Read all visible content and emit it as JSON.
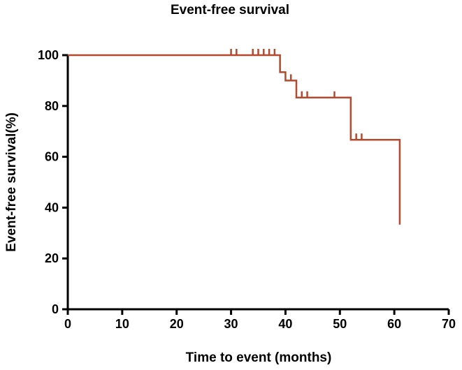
{
  "chart_data": {
    "type": "line",
    "subtype": "kaplan-meier",
    "title": "Event-free  survival",
    "xlabel": "Time to event (months)",
    "ylabel": "Event-free  survival(%)",
    "xlim": [
      0,
      70
    ],
    "ylim": [
      0,
      100
    ],
    "xticks": [
      0,
      10,
      20,
      30,
      40,
      50,
      60,
      70
    ],
    "yticks": [
      0,
      20,
      40,
      60,
      80,
      100
    ],
    "xtick_labels": [
      "0",
      "10",
      "20",
      "30",
      "40",
      "50",
      "60",
      "70"
    ],
    "ytick_labels": [
      "0",
      "20",
      "40",
      "60",
      "80",
      "100"
    ],
    "grid": false,
    "color": "#b5492d",
    "series": [
      {
        "name": "Event-free survival",
        "steps": [
          {
            "x": 0,
            "y": 100
          },
          {
            "x": 39,
            "y": 93.3
          },
          {
            "x": 40,
            "y": 90
          },
          {
            "x": 42,
            "y": 83.3
          },
          {
            "x": 52,
            "y": 66.7
          },
          {
            "x": 61,
            "y": 33.3
          }
        ],
        "x_end": 61,
        "censored": [
          {
            "x": 30,
            "y": 100
          },
          {
            "x": 31,
            "y": 100
          },
          {
            "x": 34,
            "y": 100
          },
          {
            "x": 35,
            "y": 100
          },
          {
            "x": 36,
            "y": 100
          },
          {
            "x": 37,
            "y": 100
          },
          {
            "x": 38,
            "y": 100
          },
          {
            "x": 41,
            "y": 90
          },
          {
            "x": 43,
            "y": 83.3
          },
          {
            "x": 44,
            "y": 83.3
          },
          {
            "x": 49,
            "y": 83.3
          },
          {
            "x": 53,
            "y": 66.7
          },
          {
            "x": 54,
            "y": 66.7
          }
        ]
      }
    ]
  }
}
